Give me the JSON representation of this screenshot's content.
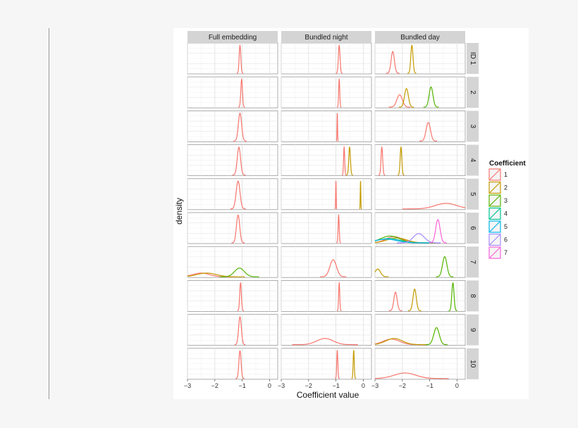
{
  "chart_data": {
    "type": "density",
    "xlabel": "Coefficient value",
    "ylabel": "density",
    "xlim": [
      -3,
      0.3
    ],
    "x_ticks": [
      -3,
      -2,
      -1,
      0
    ],
    "grid": true,
    "legend": {
      "title": "Coefficient",
      "position": "right",
      "entries": [
        {
          "label": "1",
          "color": "#F8766D"
        },
        {
          "label": "2",
          "color": "#C49A00"
        },
        {
          "label": "3",
          "color": "#53B400"
        },
        {
          "label": "4",
          "color": "#00C094"
        },
        {
          "label": "5",
          "color": "#00B6EB"
        },
        {
          "label": "6",
          "color": "#A58AFF"
        },
        {
          "label": "7",
          "color": "#FB61D7"
        }
      ]
    },
    "columns": [
      "Full embedding",
      "Bundled night",
      "Bundled day"
    ],
    "rows": [
      "ID 1",
      "2",
      "3",
      "4",
      "5",
      "6",
      "7",
      "8",
      "9",
      "10"
    ],
    "panels": [
      [
        [
          {
            "coef": "1",
            "mean": -1.08,
            "sd": 0.03
          }
        ],
        [
          {
            "coef": "1",
            "mean": -1.02,
            "sd": 0.03
          }
        ],
        [
          {
            "coef": "1",
            "mean": -1.08,
            "sd": 0.06
          }
        ],
        [
          {
            "coef": "1",
            "mean": -1.12,
            "sd": 0.06
          }
        ],
        [
          {
            "coef": "1",
            "mean": -1.15,
            "sd": 0.07
          }
        ],
        [
          {
            "coef": "1",
            "mean": -1.15,
            "sd": 0.06
          }
        ],
        [
          {
            "coef": "1",
            "mean": -2.5,
            "sd": 0.3,
            "h": 0.12
          },
          {
            "coef": "2",
            "mean": -2.3,
            "sd": 0.35,
            "h": 0.12
          },
          {
            "coef": "3",
            "mean": -1.1,
            "sd": 0.18,
            "h": 0.28
          }
        ],
        [
          {
            "coef": "1",
            "mean": -1.06,
            "sd": 0.03
          }
        ],
        [
          {
            "coef": "1",
            "mean": -1.08,
            "sd": 0.05
          }
        ],
        [
          {
            "coef": "1",
            "mean": -1.08,
            "sd": 0.04
          }
        ]
      ],
      [
        [
          {
            "coef": "1",
            "mean": -0.88,
            "sd": 0.03
          }
        ],
        [
          {
            "coef": "1",
            "mean": -0.88,
            "sd": 0.02
          }
        ],
        [
          {
            "coef": "1",
            "mean": -0.95,
            "sd": 0.01
          }
        ],
        [
          {
            "coef": "1",
            "mean": -0.7,
            "sd": 0.02
          },
          {
            "coef": "2",
            "mean": -0.5,
            "sd": 0.03
          }
        ],
        [
          {
            "coef": "1",
            "mean": -1.0,
            "sd": 0.01
          },
          {
            "coef": "2",
            "mean": -0.1,
            "sd": 0.01
          }
        ],
        [
          {
            "coef": "1",
            "mean": -0.9,
            "sd": 0.02
          }
        ],
        [
          {
            "coef": "1",
            "mean": -1.1,
            "sd": 0.12,
            "h": 0.55
          }
        ],
        [
          {
            "coef": "1",
            "mean": -0.88,
            "sd": 0.02
          }
        ],
        [
          {
            "coef": "1",
            "mean": -1.4,
            "sd": 0.3,
            "h": 0.2
          }
        ],
        [
          {
            "coef": "1",
            "mean": -0.95,
            "sd": 0.02
          },
          {
            "coef": "2",
            "mean": -0.35,
            "sd": 0.02
          }
        ]
      ],
      [
        [
          {
            "coef": "1",
            "mean": -2.35,
            "sd": 0.06,
            "h": 0.7
          },
          {
            "coef": "2",
            "mean": -1.65,
            "sd": 0.04
          }
        ],
        [
          {
            "coef": "1",
            "mean": -2.1,
            "sd": 0.1,
            "h": 0.4
          },
          {
            "coef": "2",
            "mean": -1.85,
            "sd": 0.07,
            "h": 0.6
          },
          {
            "coef": "3",
            "mean": -0.95,
            "sd": 0.07,
            "h": 0.65
          }
        ],
        [
          {
            "coef": "1",
            "mean": -1.05,
            "sd": 0.08,
            "h": 0.6
          }
        ],
        [
          {
            "coef": "1",
            "mean": -2.75,
            "sd": 0.03
          },
          {
            "coef": "2",
            "mean": -2.05,
            "sd": 0.03
          }
        ],
        [
          {
            "coef": "1",
            "mean": -0.4,
            "sd": 0.4,
            "h": 0.18
          }
        ],
        [
          {
            "coef": "1",
            "mean": -2.3,
            "sd": 0.3,
            "h": 0.2
          },
          {
            "coef": "2",
            "mean": -2.2,
            "sd": 0.35,
            "h": 0.16
          },
          {
            "coef": "3",
            "mean": -2.45,
            "sd": 0.35,
            "h": 0.22
          },
          {
            "coef": "4",
            "mean": -2.5,
            "sd": 0.4,
            "h": 0.14
          },
          {
            "coef": "5",
            "mean": -2.6,
            "sd": 0.4,
            "h": 0.12
          },
          {
            "coef": "6",
            "mean": -1.4,
            "sd": 0.2,
            "h": 0.3
          },
          {
            "coef": "7",
            "mean": -0.7,
            "sd": 0.08,
            "h": 0.75
          }
        ],
        [
          {
            "coef": "2",
            "mean": -2.9,
            "sd": 0.1,
            "h": 0.25
          },
          {
            "coef": "3",
            "mean": -0.45,
            "sd": 0.08,
            "h": 0.65
          }
        ],
        [
          {
            "coef": "1",
            "mean": -2.25,
            "sd": 0.06,
            "h": 0.6
          },
          {
            "coef": "2",
            "mean": -1.55,
            "sd": 0.06,
            "h": 0.7
          },
          {
            "coef": "3",
            "mean": -0.15,
            "sd": 0.04
          }
        ],
        [
          {
            "coef": "1",
            "mean": -2.4,
            "sd": 0.3,
            "h": 0.18
          },
          {
            "coef": "2",
            "mean": -2.3,
            "sd": 0.3,
            "h": 0.2
          },
          {
            "coef": "3",
            "mean": -0.75,
            "sd": 0.1,
            "h": 0.55
          }
        ],
        [
          {
            "coef": "1",
            "mean": -1.9,
            "sd": 0.4,
            "h": 0.18
          }
        ]
      ]
    ]
  }
}
